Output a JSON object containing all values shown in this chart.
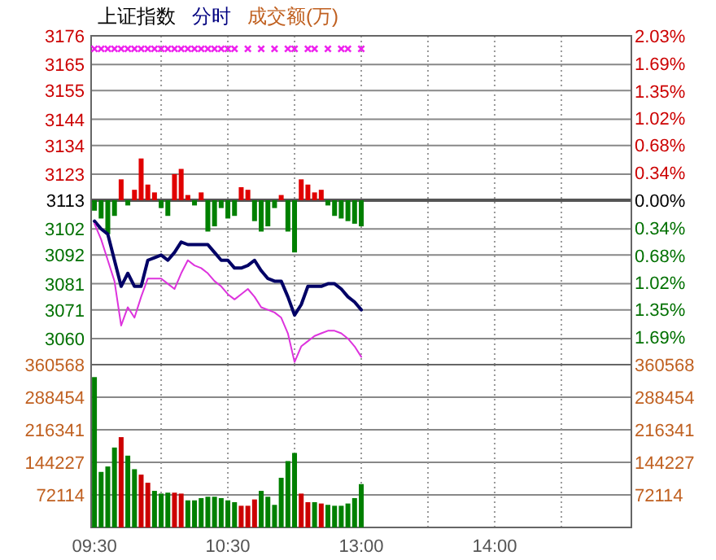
{
  "chart_data": [
    {
      "type": "line",
      "title": "上证指数",
      "subtitle": "分时",
      "annotations": [
        "成交额(万)"
      ],
      "categories": [
        null,
        null,
        null,
        null,
        null,
        null,
        null,
        null,
        null,
        null,
        null,
        null,
        null,
        null,
        null,
        null,
        null,
        null,
        null,
        null,
        null,
        null,
        null,
        null,
        null,
        null,
        null,
        null,
        null,
        null,
        null,
        null,
        null,
        null,
        null,
        null,
        null,
        null,
        null,
        null,
        null,
        null,
        null,
        null,
        null,
        null,
        null,
        null,
        null,
        null,
        null,
        null,
        null,
        null,
        null,
        null,
        null,
        null,
        null,
        null,
        null,
        null,
        null,
        null,
        null,
        null,
        null,
        null,
        null,
        null,
        null,
        null,
        null,
        null,
        null,
        null,
        null,
        null,
        null,
        null,
        null
      ],
      "ylim": [
        3050,
        3176
      ],
      "yticks": [
        3060,
        3071,
        3081,
        3092,
        3102,
        3113,
        3123,
        3134,
        3144,
        3155,
        3165,
        3176
      ],
      "y2lim": [
        -2.03,
        2.03
      ],
      "y2ticks": [
        {
          "value": -1.69,
          "label": "1.69%"
        },
        {
          "value": -1.35,
          "label": "1.35%"
        },
        {
          "value": -1.02,
          "label": "1.02%"
        },
        {
          "value": -0.68,
          "label": "0.68%"
        },
        {
          "value": -0.34,
          "label": "0.34%"
        },
        {
          "value": 0,
          "label": "0.00%"
        },
        {
          "value": 0.34,
          "label": "0.34%"
        },
        {
          "value": 0.68,
          "label": "0.68%"
        },
        {
          "value": 1.02,
          "label": "1.02%"
        },
        {
          "value": 1.35,
          "label": "1.35%"
        },
        {
          "value": 1.69,
          "label": "1.69%"
        },
        {
          "value": 2.03,
          "label": "2.03%"
        }
      ],
      "tick_labels": "y",
      "grid": true,
      "ref_lines": [
        {
          "axis": "y",
          "value": 3113
        }
      ],
      "series": [
        {
          "type": "bar",
          "values": [
            -4,
            -7,
            -13,
            -6,
            8,
            -2,
            4,
            16,
            6,
            3,
            -3,
            -6,
            10,
            12,
            2,
            -2,
            3,
            -12,
            -10,
            -3,
            -7,
            -6,
            5,
            4,
            -8,
            -12,
            -10,
            -3,
            2,
            -12,
            -20,
            8,
            6,
            3,
            4,
            -2,
            -6,
            -7,
            -8,
            -9,
            -10,
            null,
            null,
            null,
            null,
            null,
            null,
            null,
            null,
            null,
            null,
            null,
            null,
            null,
            null,
            null,
            null,
            null,
            null,
            null,
            null,
            null,
            null,
            null,
            null,
            null,
            null,
            null,
            null,
            null,
            null,
            null,
            null,
            null,
            null,
            null,
            null,
            null,
            null,
            null,
            null
          ],
          "colors": [
            "#008000",
            "#008000",
            "#008000",
            "#008000",
            "#e00000",
            "#008000",
            "#e00000",
            "#e00000",
            "#e00000",
            "#e00000",
            "#008000",
            "#008000",
            "#e00000",
            "#e00000",
            "#e00000",
            "#008000",
            "#e00000",
            "#008000",
            "#008000",
            "#008000",
            "#008000",
            "#008000",
            "#e00000",
            "#e00000",
            "#008000",
            "#008000",
            "#008000",
            "#008000",
            "#e00000",
            "#008000",
            "#008000",
            "#e00000",
            "#e00000",
            "#e00000",
            "#e00000",
            "#008000",
            "#008000",
            "#008000",
            "#008000",
            "#008000",
            "#008000",
            null,
            null,
            null,
            null,
            null,
            null,
            null,
            null,
            null,
            null,
            null,
            null,
            null,
            null,
            null,
            null,
            null,
            null,
            null,
            null,
            null,
            null,
            null,
            null,
            null,
            null,
            null,
            null,
            null,
            null,
            null,
            null,
            null,
            null,
            null,
            null,
            null,
            null,
            null,
            null
          ],
          "base": [
            3113,
            3113,
            3113,
            3113,
            3113,
            3113,
            3113,
            3113,
            3113,
            3113,
            3113,
            3113,
            3113,
            3113,
            3113,
            3113,
            3113,
            3113,
            3113,
            3113,
            3113,
            3113,
            3113,
            3113,
            3113,
            3113,
            3113,
            3113,
            3113,
            3113,
            3113,
            3113,
            3113,
            3113,
            3113,
            3113,
            3113,
            3113,
            3113,
            3113,
            3113,
            null,
            null,
            null,
            null,
            null,
            null,
            null,
            null,
            null,
            null,
            null,
            null,
            null,
            null,
            null,
            null,
            null,
            null,
            null,
            null,
            null,
            null,
            null,
            null,
            null,
            null,
            null,
            null,
            null,
            null,
            null,
            null,
            null,
            null,
            null,
            null,
            null,
            null,
            null,
            null
          ]
        },
        {
          "color": "#000066",
          "values": [
            3105,
            3102,
            3100,
            3090,
            3080,
            3085,
            3080,
            3080,
            3090,
            3091,
            3092,
            3090,
            3093,
            3097,
            3096,
            3096,
            3096,
            3096,
            3093,
            3090,
            3090,
            3087,
            3087,
            3088,
            3090,
            3086,
            3083,
            3082,
            3082,
            3076,
            3069,
            3073,
            3080,
            3080,
            3080,
            3081,
            3081,
            3079,
            3076,
            3074,
            3071,
            null,
            null,
            null,
            null,
            null,
            null,
            null,
            null,
            null,
            null,
            null,
            null,
            null,
            null,
            null,
            null,
            null,
            null,
            null,
            null,
            null,
            null,
            null,
            null,
            null,
            null,
            null,
            null,
            null,
            null,
            null,
            null,
            null,
            null,
            null,
            null,
            null,
            null,
            null,
            null
          ]
        },
        {
          "color": "#dd33dd",
          "values": [
            3104,
            3098,
            3090,
            3082,
            3065,
            3072,
            3068,
            3076,
            3083,
            3083,
            3083,
            3081,
            3079,
            3085,
            3090,
            3088,
            3087,
            3085,
            3082,
            3080,
            3077,
            3075,
            3077,
            3079,
            3076,
            3072,
            3071,
            3070,
            3068,
            3062,
            3051,
            3057,
            3059,
            3061,
            3062,
            3063,
            3063,
            3062,
            3060,
            3057,
            3053,
            null,
            null,
            null,
            null,
            null,
            null,
            null,
            null,
            null,
            null,
            null,
            null,
            null,
            null,
            null,
            null,
            null,
            null,
            null,
            null,
            null,
            null,
            null,
            null,
            null,
            null,
            null,
            null,
            null,
            null,
            null,
            null,
            null,
            null,
            null,
            null,
            null,
            null,
            null,
            null
          ]
        },
        {
          "type": "scatter",
          "marker": "cross",
          "color": "#ee22ee",
          "values": [
            3171,
            3171,
            3171,
            3171,
            3171,
            3171,
            3171,
            3171,
            3171,
            3171,
            3171,
            3171,
            3171,
            3171,
            3171,
            3171,
            3171,
            3171,
            3171,
            3171,
            3171,
            3171,
            null,
            3171,
            null,
            3171,
            null,
            3171,
            null,
            3171,
            3171,
            null,
            3171,
            3171,
            null,
            3171,
            null,
            3171,
            3171,
            null,
            3171,
            null,
            null,
            null,
            null,
            null,
            null,
            null,
            null,
            null,
            null,
            null,
            null,
            null,
            null,
            null,
            null,
            null,
            null,
            null,
            null,
            null,
            null,
            null,
            null,
            null,
            null,
            null,
            null,
            null,
            null,
            null,
            null,
            null,
            null,
            null,
            null,
            null,
            null,
            null,
            null
          ]
        }
      ]
    },
    {
      "type": "bar",
      "categories": [
        "09:30",
        null,
        null,
        null,
        null,
        null,
        null,
        null,
        null,
        null,
        null,
        null,
        null,
        null,
        null,
        null,
        null,
        null,
        null,
        null,
        "10:30",
        null,
        null,
        null,
        null,
        null,
        null,
        null,
        null,
        null,
        null,
        null,
        null,
        null,
        null,
        null,
        null,
        null,
        null,
        null,
        "13:00",
        null,
        null,
        null,
        null,
        null,
        null,
        null,
        null,
        null,
        null,
        null,
        null,
        null,
        null,
        null,
        null,
        null,
        null,
        null,
        "14:00",
        null,
        null,
        null,
        null,
        null,
        null,
        null,
        null,
        null,
        null,
        null,
        null,
        null,
        null,
        null,
        null,
        null,
        null,
        null,
        null
      ],
      "values": [
        333000,
        123000,
        135000,
        177000,
        200000,
        159000,
        129000,
        117000,
        99000,
        81000,
        75000,
        77000,
        77000,
        75000,
        60000,
        60000,
        65000,
        68000,
        68000,
        65000,
        60000,
        56000,
        48000,
        48000,
        62000,
        81000,
        68000,
        50000,
        110000,
        147000,
        165000,
        75000,
        56000,
        56000,
        53000,
        50000,
        48000,
        48000,
        53000,
        65000,
        96000,
        null,
        null,
        null,
        null,
        null,
        null,
        null,
        null,
        null,
        null,
        null,
        null,
        null,
        null,
        null,
        null,
        null,
        null,
        null,
        null,
        null,
        null,
        null,
        null,
        null,
        null,
        null,
        null,
        null,
        null,
        null,
        null,
        null,
        null,
        null,
        null,
        null,
        null,
        null,
        null
      ],
      "colors": [
        "#008000",
        "#008000",
        "#008000",
        "#008000",
        "#cc0000",
        "#008000",
        "#008000",
        "#cc0000",
        "#cc0000",
        "#008000",
        "#008000",
        "#008000",
        "#cc0000",
        "#cc0000",
        "#008000",
        "#008000",
        "#008000",
        "#008000",
        "#008000",
        "#008000",
        "#008000",
        "#008000",
        "#cc0000",
        "#cc0000",
        "#cc0000",
        "#008000",
        "#008000",
        "#008000",
        "#008000",
        "#008000",
        "#008000",
        "#cc0000",
        "#cc0000",
        "#008000",
        "#cc0000",
        "#008000",
        "#008000",
        "#008000",
        "#008000",
        "#008000",
        "#008000",
        null,
        null,
        null,
        null,
        null,
        null,
        null,
        null,
        null,
        null,
        null,
        null,
        null,
        null,
        null,
        null,
        null,
        null,
        null,
        null,
        null,
        null,
        null,
        null,
        null,
        null,
        null,
        null,
        null,
        null,
        null,
        null,
        null,
        null,
        null,
        null,
        null,
        null,
        null,
        null
      ],
      "ylim": [
        0,
        360568
      ],
      "yticks": [
        72114,
        144227,
        216341,
        288454,
        360568
      ],
      "y2lim": [
        0,
        360568
      ],
      "y2ticks": [
        72114,
        144227,
        216341,
        288454,
        360568
      ],
      "grid": true
    }
  ]
}
